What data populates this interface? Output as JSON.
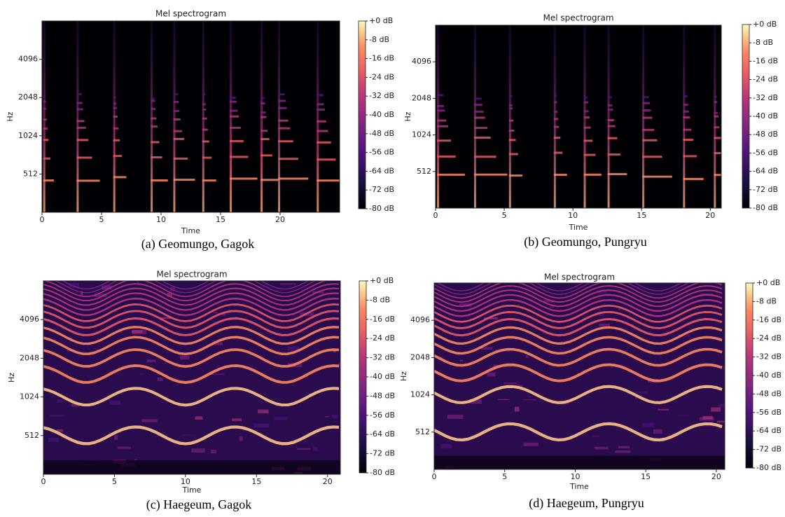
{
  "chart_data": [
    {
      "type": "spectrogram",
      "title": "Mel spectrogram",
      "xlabel": "Time",
      "ylabel": "Hz",
      "caption": "(a) Geomungo, Gagok",
      "xlim": [
        0,
        25
      ],
      "xticks": [
        0,
        5,
        10,
        15,
        20
      ],
      "ylim": [
        256,
        8192
      ],
      "yticks": [
        512,
        1024,
        2048,
        4096
      ],
      "log_scale_y": true,
      "log_base": 2,
      "colormap": "magma",
      "colorbar_lim": [
        -80,
        0
      ],
      "colorbar_ticks": [
        {
          "value": 0,
          "label": "+0 dB"
        },
        {
          "value": -8,
          "label": "-8 dB"
        },
        {
          "value": -16,
          "label": "-16 dB"
        },
        {
          "value": -24,
          "label": "-24 dB"
        },
        {
          "value": -32,
          "label": "-32 dB"
        },
        {
          "value": -40,
          "label": "-40 dB"
        },
        {
          "value": -48,
          "label": "-48 dB"
        },
        {
          "value": -56,
          "label": "-56 dB"
        },
        {
          "value": -64,
          "label": "-64 dB"
        },
        {
          "value": -72,
          "label": "-72 dB"
        },
        {
          "value": -80,
          "label": "-80 dB"
        }
      ]
    },
    {
      "type": "spectrogram",
      "title": "Mel spectrogram",
      "xlabel": "Time",
      "ylabel": "Hz",
      "caption": "(b) Geomungo, Pungryu",
      "xlim": [
        0,
        20.8
      ],
      "xticks": [
        0,
        5,
        10,
        15,
        20
      ],
      "ylim": [
        256,
        8192
      ],
      "yticks": [
        512,
        1024,
        2048,
        4096
      ],
      "log_scale_y": true,
      "log_base": 2,
      "colormap": "magma",
      "colorbar_lim": [
        -80,
        0
      ],
      "colorbar_ticks": [
        {
          "value": 0,
          "label": "+0 dB"
        },
        {
          "value": -8,
          "label": "-8 dB"
        },
        {
          "value": -16,
          "label": "-16 dB"
        },
        {
          "value": -24,
          "label": "-24 dB"
        },
        {
          "value": -32,
          "label": "-32 dB"
        },
        {
          "value": -40,
          "label": "-40 dB"
        },
        {
          "value": -48,
          "label": "-48 dB"
        },
        {
          "value": -56,
          "label": "-56 dB"
        },
        {
          "value": -64,
          "label": "-64 dB"
        },
        {
          "value": -72,
          "label": "-72 dB"
        },
        {
          "value": -80,
          "label": "-80 dB"
        }
      ]
    },
    {
      "type": "spectrogram",
      "title": "Mel spectrogram",
      "xlabel": "Time",
      "ylabel": "Hz",
      "caption": "(c) Haegeum, Gagok",
      "xlim": [
        0,
        20.9
      ],
      "xticks": [
        0,
        5,
        10,
        15,
        20
      ],
      "ylim": [
        256,
        8192
      ],
      "yticks": [
        512,
        1024,
        2048,
        4096
      ],
      "log_scale_y": true,
      "log_base": 2,
      "colormap": "magma",
      "colorbar_lim": [
        -80,
        0
      ],
      "colorbar_ticks": [
        {
          "value": 0,
          "label": "+0 dB"
        },
        {
          "value": -8,
          "label": "-8 dB"
        },
        {
          "value": -16,
          "label": "-16 dB"
        },
        {
          "value": -24,
          "label": "-24 dB"
        },
        {
          "value": -32,
          "label": "-32 dB"
        },
        {
          "value": -40,
          "label": "-40 dB"
        },
        {
          "value": -48,
          "label": "-48 dB"
        },
        {
          "value": -56,
          "label": "-56 dB"
        },
        {
          "value": -64,
          "label": "-64 dB"
        },
        {
          "value": -72,
          "label": "-72 dB"
        },
        {
          "value": -80,
          "label": "-80 dB"
        }
      ]
    },
    {
      "type": "spectrogram",
      "title": "Mel spectrogram",
      "xlabel": "Time",
      "ylabel": "Hz",
      "caption": "(d) Haegeum, Pungryu",
      "xlim": [
        0,
        20.6
      ],
      "xticks": [
        0,
        5,
        10,
        15,
        20
      ],
      "ylim": [
        256,
        8192
      ],
      "yticks": [
        512,
        1024,
        2048,
        4096
      ],
      "log_scale_y": true,
      "log_base": 2,
      "colormap": "magma",
      "colorbar_lim": [
        -80,
        0
      ],
      "colorbar_ticks": [
        {
          "value": 0,
          "label": "+0 dB"
        },
        {
          "value": -8,
          "label": "-8 dB"
        },
        {
          "value": -16,
          "label": "-16 dB"
        },
        {
          "value": -24,
          "label": "-24 dB"
        },
        {
          "value": -32,
          "label": "-32 dB"
        },
        {
          "value": -40,
          "label": "-40 dB"
        },
        {
          "value": -48,
          "label": "-48 dB"
        },
        {
          "value": -56,
          "label": "-56 dB"
        },
        {
          "value": -64,
          "label": "-64 dB"
        },
        {
          "value": -72,
          "label": "-72 dB"
        },
        {
          "value": -80,
          "label": "-80 dB"
        }
      ]
    }
  ]
}
